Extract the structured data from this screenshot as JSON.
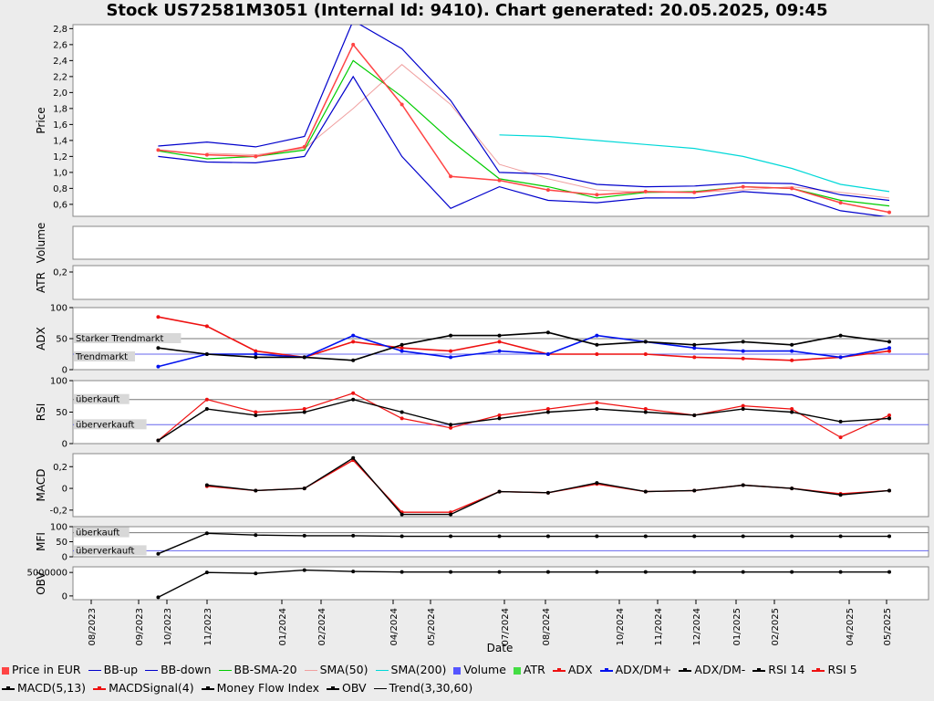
{
  "title": "Stock US72581M3051 (Internal Id: 9410). Chart generated: 20.05.2025, 09:45",
  "colors": {
    "price": "#ff4444",
    "bb": "#0000cc",
    "bbsma": "#00cc00",
    "sma50": "#f0a0a0",
    "sma200": "#00d8d8",
    "volume": "#5555ff",
    "atr": "#44dd44",
    "adx": "#ee1111",
    "dmplus": "#0011ee",
    "dmminus": "#000000",
    "rsi14": "#000000",
    "rsi5": "#ee1111",
    "macd": "#000000",
    "macdsig": "#ee1111",
    "mfi": "#000000",
    "obv": "#000000",
    "hline_gray": "#777777",
    "hline_blue": "#6666ee"
  },
  "xaxis": {
    "label": "Date",
    "ticks": [
      "08/2023",
      "09/2023",
      "10/2023",
      "11/2023",
      "01/2024",
      "02/2024",
      "04/2024",
      "05/2024",
      "07/2024",
      "08/2024",
      "10/2024",
      "11/2024",
      "12/2024",
      "01/2025",
      "02/2025",
      "04/2025",
      "05/2025"
    ]
  },
  "panels": {
    "price": {
      "ylabel": "Price",
      "yticks": [
        "0,6",
        "0,8",
        "1,0",
        "1,2",
        "1,4",
        "1,6",
        "1,8",
        "2,0",
        "2,2",
        "2,4",
        "2,6",
        "2,8"
      ],
      "ylim": [
        0.45,
        2.85
      ]
    },
    "volume": {
      "ylabel": "Volume"
    },
    "atr": {
      "ylabel": "ATR",
      "yticks": [
        "0,2"
      ]
    },
    "adx": {
      "ylabel": "ADX",
      "yticks": [
        "0",
        "50",
        "100"
      ],
      "annotations": [
        "Starker Trendmarkt",
        "Trendmarkt"
      ]
    },
    "rsi": {
      "ylabel": "RSI",
      "yticks": [
        "0",
        "50",
        "100"
      ],
      "annotations": [
        "überkauft",
        "überverkauft"
      ]
    },
    "macd": {
      "ylabel": "MACD",
      "yticks": [
        "-0,2",
        "0",
        "0,2"
      ]
    },
    "mfi": {
      "ylabel": "MFI",
      "yticks": [
        "0",
        "50",
        "100"
      ],
      "annotations": [
        "überkauft",
        "überverkauft"
      ]
    },
    "obv": {
      "ylabel": "OBV",
      "yticks": [
        "0",
        "5000000"
      ]
    }
  },
  "legend": [
    {
      "label": "Price in EUR",
      "kind": "square",
      "color": "#ff4444"
    },
    {
      "label": "BB-up",
      "kind": "line",
      "color": "#0000cc"
    },
    {
      "label": "BB-down",
      "kind": "line",
      "color": "#0000cc"
    },
    {
      "label": "BB-SMA-20",
      "kind": "line",
      "color": "#00cc00"
    },
    {
      "label": "SMA(50)",
      "kind": "line",
      "color": "#f0a0a0"
    },
    {
      "label": "SMA(200)",
      "kind": "line",
      "color": "#00d8d8"
    },
    {
      "label": "Volume",
      "kind": "square",
      "color": "#5555ff"
    },
    {
      "label": "ATR",
      "kind": "square",
      "color": "#44dd44"
    },
    {
      "label": "ADX",
      "kind": "marker",
      "color": "#ee1111"
    },
    {
      "label": "ADX/DM+",
      "kind": "marker",
      "color": "#0011ee"
    },
    {
      "label": "ADX/DM-",
      "kind": "marker",
      "color": "#000000"
    },
    {
      "label": "RSI 14",
      "kind": "marker",
      "color": "#000000"
    },
    {
      "label": "RSI 5",
      "kind": "marker",
      "color": "#ee1111"
    },
    {
      "label": "MACD(5,13)",
      "kind": "marker",
      "color": "#000000"
    },
    {
      "label": "MACDSignal(4)",
      "kind": "marker",
      "color": "#ee1111"
    },
    {
      "label": "Money Flow Index",
      "kind": "marker",
      "color": "#000000"
    },
    {
      "label": "OBV",
      "kind": "marker",
      "color": "#000000"
    },
    {
      "label": "Trend(3,30,60)",
      "kind": "line",
      "color": "#000000"
    }
  ],
  "chart_data": {
    "type": "line",
    "title": "Stock US72581M3051 (Internal Id: 9410). Chart generated: 20.05.2025, 09:45",
    "xlabel": "Date",
    "x": [
      "08/2023",
      "09/2023",
      "10/2023",
      "11/2023",
      "01/2024",
      "02/2024",
      "04/2024",
      "05/2024",
      "07/2024",
      "08/2024",
      "10/2024",
      "11/2024",
      "12/2024",
      "01/2025",
      "02/2025",
      "04/2025",
      "05/2025"
    ],
    "series": [
      {
        "name": "Price in EUR",
        "values": [
          null,
          1.28,
          1.22,
          1.2,
          1.32,
          2.6,
          1.85,
          0.95,
          0.9,
          0.78,
          0.72,
          0.76,
          0.75,
          0.82,
          0.8,
          0.62,
          0.5
        ]
      },
      {
        "name": "BB-up",
        "values": [
          null,
          1.33,
          1.38,
          1.32,
          1.45,
          2.9,
          2.55,
          1.9,
          1.0,
          0.98,
          0.85,
          0.82,
          0.83,
          0.87,
          0.86,
          0.72,
          0.65
        ]
      },
      {
        "name": "BB-down",
        "values": [
          null,
          1.2,
          1.13,
          1.12,
          1.2,
          2.2,
          1.2,
          0.55,
          0.82,
          0.65,
          0.62,
          0.68,
          0.68,
          0.76,
          0.72,
          0.52,
          0.44
        ]
      },
      {
        "name": "BB-SMA-20",
        "values": [
          null,
          1.27,
          1.17,
          1.2,
          1.28,
          2.4,
          1.95,
          1.4,
          0.92,
          0.82,
          0.68,
          0.75,
          0.76,
          0.82,
          0.8,
          0.65,
          0.58
        ]
      },
      {
        "name": "SMA(50)",
        "values": [
          null,
          null,
          1.24,
          1.22,
          1.3,
          1.8,
          2.35,
          1.85,
          1.1,
          0.92,
          0.78,
          0.75,
          0.75,
          0.78,
          0.82,
          0.75,
          0.68
        ]
      },
      {
        "name": "SMA(200)",
        "values": [
          null,
          null,
          null,
          null,
          null,
          null,
          null,
          null,
          1.47,
          1.45,
          1.4,
          1.35,
          1.3,
          1.2,
          1.05,
          0.85,
          0.76
        ]
      },
      {
        "name": "ADX",
        "values": [
          null,
          85,
          70,
          30,
          20,
          45,
          35,
          30,
          45,
          25,
          25,
          25,
          20,
          18,
          15,
          20,
          30
        ]
      },
      {
        "name": "ADX/DM+",
        "values": [
          null,
          5,
          25,
          25,
          20,
          55,
          30,
          20,
          30,
          25,
          55,
          45,
          35,
          30,
          30,
          20,
          35
        ]
      },
      {
        "name": "ADX/DM-",
        "values": [
          null,
          35,
          25,
          20,
          20,
          15,
          40,
          55,
          55,
          60,
          40,
          45,
          40,
          45,
          40,
          55,
          45
        ]
      },
      {
        "name": "RSI 14",
        "values": [
          null,
          5,
          55,
          45,
          50,
          70,
          50,
          30,
          40,
          50,
          55,
          50,
          45,
          55,
          50,
          35,
          40
        ]
      },
      {
        "name": "RSI 5",
        "values": [
          null,
          5,
          70,
          50,
          55,
          80,
          40,
          25,
          45,
          55,
          65,
          55,
          45,
          60,
          55,
          10,
          45
        ]
      },
      {
        "name": "MACD(5,13)",
        "values": [
          null,
          null,
          0.03,
          -0.02,
          0.0,
          0.28,
          -0.24,
          -0.24,
          -0.03,
          -0.04,
          0.05,
          -0.03,
          -0.02,
          0.03,
          0.0,
          -0.06,
          -0.02
        ]
      },
      {
        "name": "MACDSignal(4)",
        "values": [
          null,
          null,
          0.02,
          -0.02,
          0.0,
          0.26,
          -0.22,
          -0.22,
          -0.03,
          -0.04,
          0.04,
          -0.03,
          -0.02,
          0.03,
          0.0,
          -0.05,
          -0.02
        ]
      },
      {
        "name": "Money Flow Index",
        "values": [
          null,
          10,
          78,
          72,
          70,
          70,
          68,
          68,
          68,
          68,
          68,
          68,
          68,
          68,
          68,
          68,
          68
        ]
      },
      {
        "name": "OBV",
        "values": [
          null,
          -300000,
          5000000,
          4800000,
          5500000,
          5200000,
          5100000,
          5100000,
          5100000,
          5100000,
          5100000,
          5100000,
          5100000,
          5100000,
          5100000,
          5100000,
          5100000
        ]
      }
    ],
    "grid": false,
    "legend_position": "bottom"
  }
}
